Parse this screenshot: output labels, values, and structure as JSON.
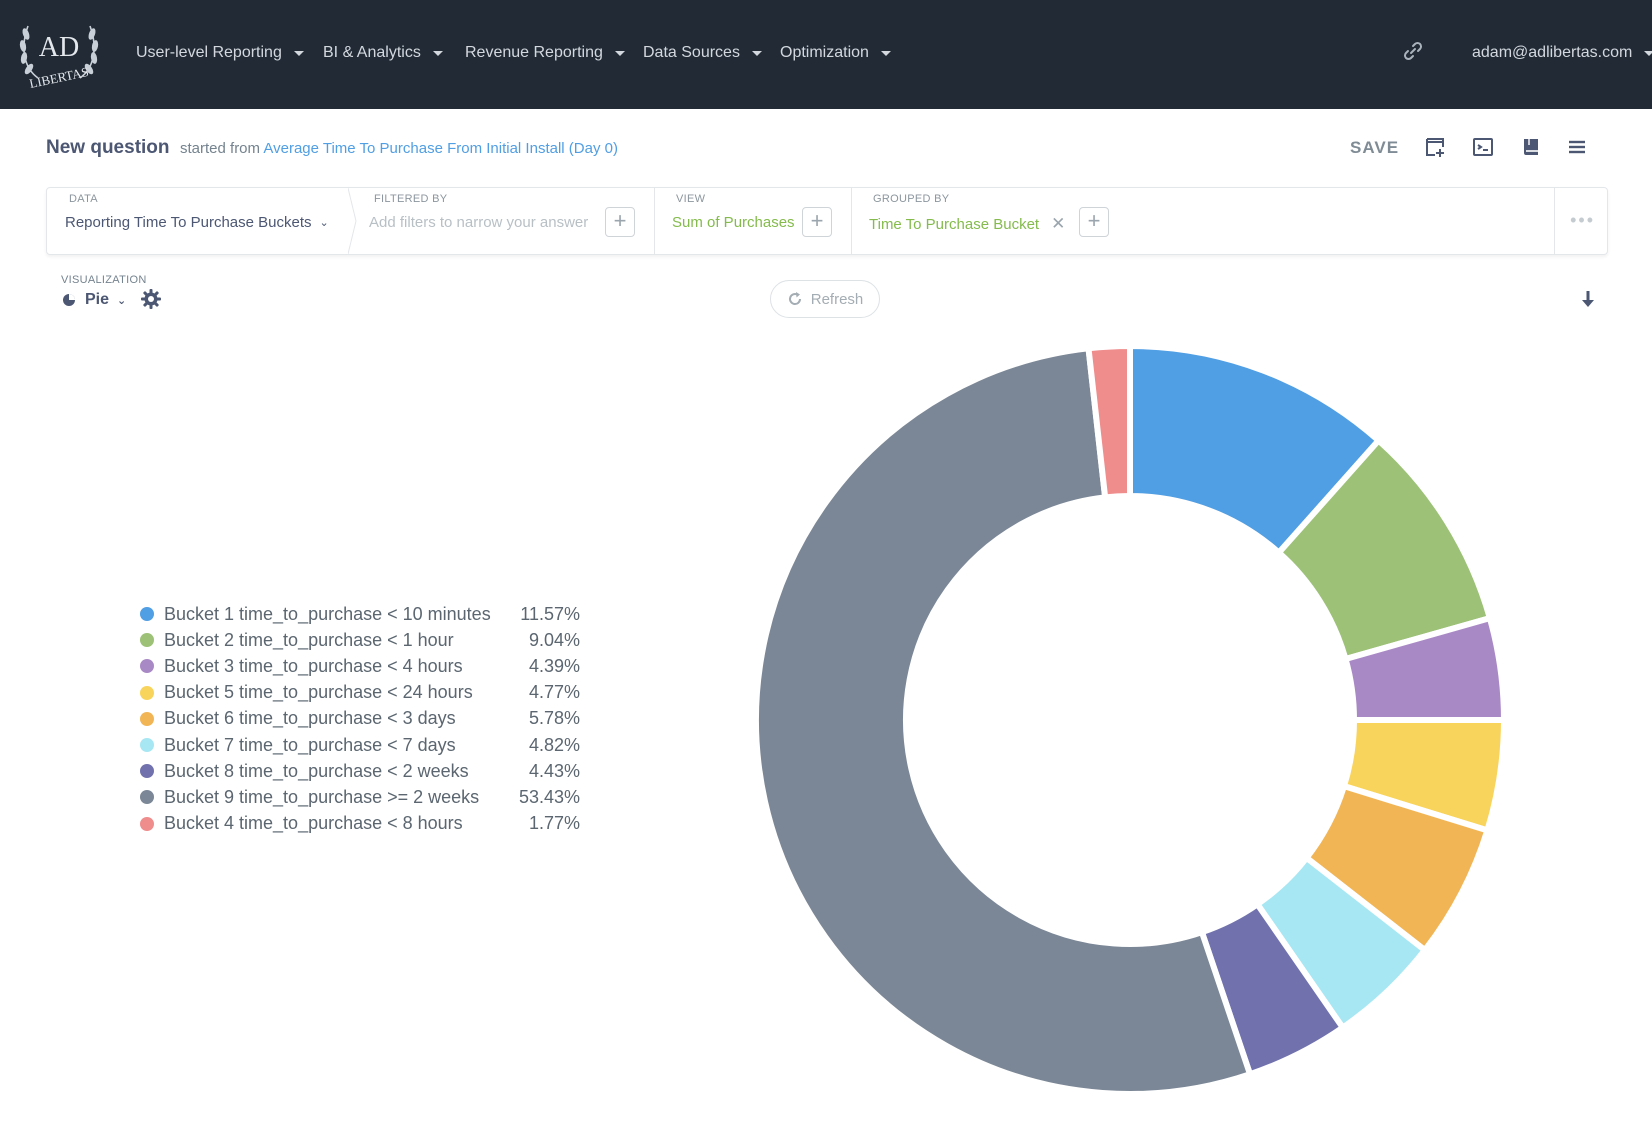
{
  "nav": {
    "logo_text": "AD LIBERTAS",
    "items": [
      {
        "label": "User-level Reporting"
      },
      {
        "label": "BI & Analytics"
      },
      {
        "label": "Revenue Reporting"
      },
      {
        "label": "Data Sources"
      },
      {
        "label": "Optimization"
      }
    ],
    "user_email": "adam@adlibertas.com"
  },
  "header": {
    "title": "New question",
    "started_prefix": "started from",
    "source_question": "Average Time To Purchase From Initial Install (Day 0)",
    "save_label": "SAVE"
  },
  "query": {
    "data_label": "DATA",
    "data_value": "Reporting Time To Purchase Buckets",
    "filter_label": "FILTERED BY",
    "filter_placeholder": "Add filters to narrow your answer",
    "view_label": "VIEW",
    "view_value": "Sum of Purchases",
    "group_label": "GROUPED BY",
    "group_value": "Time To Purchase Bucket"
  },
  "visualization": {
    "label": "VISUALIZATION",
    "type": "Pie",
    "refresh_label": "Refresh"
  },
  "colors": {
    "nav_bg": "#212a35",
    "accent_blue": "#509ee3",
    "accent_green": "#84bb4c"
  },
  "chart_data": {
    "type": "pie",
    "donut": true,
    "categories": [
      "Bucket 1 time_to_purchase < 10 minutes",
      "Bucket 2 time_to_purchase < 1 hour",
      "Bucket 3 time_to_purchase < 4 hours",
      "Bucket 5 time_to_purchase < 24 hours",
      "Bucket 6 time_to_purchase < 3 days",
      "Bucket 7 time_to_purchase < 7 days",
      "Bucket 8 time_to_purchase < 2 weeks",
      "Bucket 9 time_to_purchase >= 2 weeks",
      "Bucket 4 time_to_purchase < 8 hours"
    ],
    "values": [
      11.57,
      9.04,
      4.39,
      4.77,
      5.78,
      4.82,
      4.43,
      53.43,
      1.77
    ],
    "labels": [
      "11.57%",
      "9.04%",
      "4.39%",
      "4.77%",
      "5.78%",
      "4.82%",
      "4.43%",
      "53.43%",
      "1.77%"
    ],
    "colors": [
      "#509ee3",
      "#9cc177",
      "#a989c5",
      "#f9d45c",
      "#f1b556",
      "#a6e7f3",
      "#7172ad",
      "#7b8796",
      "#ef8c8c"
    ],
    "legend_position": "left"
  }
}
